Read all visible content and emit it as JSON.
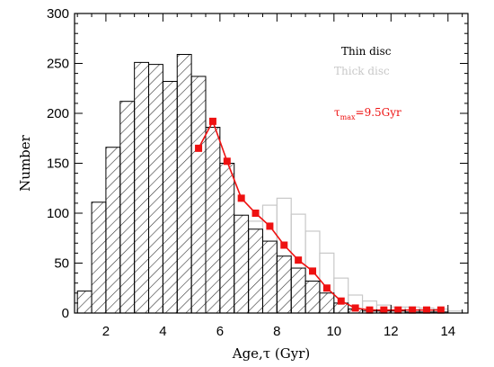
{
  "chart_data": {
    "type": "bar",
    "xlabel": "Age,τ (Gyr)",
    "ylabel": "Number",
    "xlim": [
      0.9,
      14.7
    ],
    "ylim": [
      0,
      300
    ],
    "xticks": [
      2,
      4,
      6,
      8,
      10,
      12,
      14
    ],
    "yticks": [
      0,
      50,
      100,
      150,
      200,
      250,
      300
    ],
    "bin_width": 0.5,
    "grid": false,
    "legend_position": "top-right",
    "series": [
      {
        "name": "Thin disc",
        "style": "hatched",
        "color": "#000000",
        "bin_left_edges": [
          1.0,
          1.5,
          2.0,
          2.5,
          3.0,
          3.5,
          4.0,
          4.5,
          5.0,
          5.5,
          6.0,
          6.5,
          7.0,
          7.5,
          8.0,
          8.5,
          9.0,
          9.5,
          10.0,
          10.5,
          11.0,
          11.5,
          12.0,
          12.5,
          13.0,
          13.5,
          14.0
        ],
        "values": [
          22,
          111,
          166,
          212,
          251,
          249,
          232,
          259,
          237,
          186,
          150,
          98,
          84,
          72,
          57,
          45,
          32,
          20,
          10,
          4,
          2,
          2,
          2,
          1,
          1,
          1,
          0
        ]
      },
      {
        "name": "Thick disc",
        "style": "outline",
        "color": "#c8c8c8",
        "bin_left_edges": [
          7.0,
          7.5,
          8.0,
          8.5,
          9.0,
          9.5,
          10.0,
          10.5,
          11.0,
          11.5,
          12.0,
          12.5,
          13.0,
          13.5,
          14.0
        ],
        "values": [
          92,
          108,
          115,
          99,
          82,
          60,
          35,
          18,
          12,
          8,
          6,
          6,
          5,
          4,
          2
        ]
      },
      {
        "name": "τmax=9.5Gyr",
        "style": "line-markers",
        "color": "#ee1111",
        "x": [
          5.25,
          5.75,
          6.25,
          6.75,
          7.25,
          7.75,
          8.25,
          8.75,
          9.25,
          9.75,
          10.25,
          10.75,
          11.25,
          11.75,
          12.25,
          12.75,
          13.25,
          13.75
        ],
        "values": [
          165,
          192,
          152,
          115,
          100,
          87,
          68,
          53,
          42,
          25,
          12,
          5,
          3,
          3,
          3,
          3,
          3,
          3
        ]
      }
    ]
  },
  "legend": {
    "thin": "Thin disc",
    "thick": "Thick disc",
    "tau_symbol": "τ",
    "tau_subscript": "max",
    "tau_value": "=9.5Gyr"
  },
  "colors": {
    "axis": "#000000",
    "thin": "#000000",
    "thick": "#c8c8c8",
    "model": "#ee1111"
  }
}
